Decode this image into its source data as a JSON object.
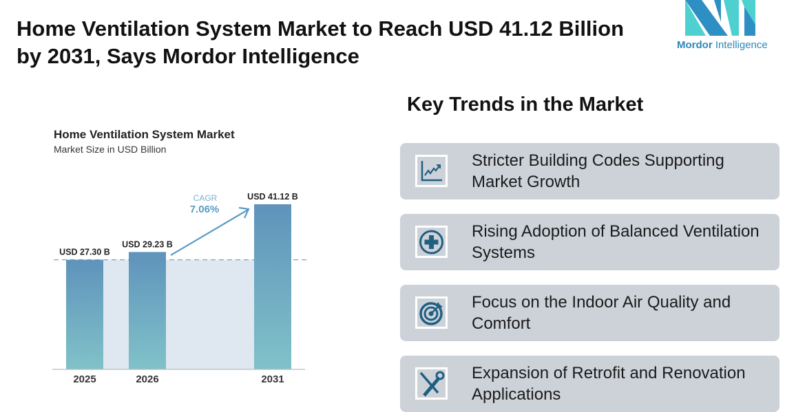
{
  "header": {
    "title": "Home Ventilation System Market to Reach USD 41.12 Billion by 2031, Says Mordor Intelligence"
  },
  "logo": {
    "brand_bold": "Mordor",
    "brand_light": "Intelligence",
    "colors": [
      "#2e8fc4",
      "#4fd0d0"
    ]
  },
  "chart_data": {
    "type": "bar",
    "title": "Home Ventilation System Market",
    "subtitle": "Market Size in USD Billion",
    "categories": [
      "2025",
      "2026",
      "2031"
    ],
    "values": [
      27.3,
      29.23,
      41.12
    ],
    "data_labels": [
      "USD 27.30 B",
      "USD 29.23 B",
      "USD 41.12 B"
    ],
    "annotation": {
      "label": "CAGR",
      "value": "7.06%"
    },
    "ylim": [
      0,
      41.12
    ],
    "grid": false,
    "colors": {
      "bar_top": "#5f93bb",
      "bar_bottom": "#80c2c9",
      "band": "#dfe8f0",
      "accent": "#5a9ac4"
    }
  },
  "trends": {
    "title": "Key Trends in the Market",
    "items": [
      {
        "text": "Stricter Building Codes Supporting Market Growth",
        "icon": "chart-growth-icon"
      },
      {
        "text": "Rising Adoption of Balanced Ventilation Systems",
        "icon": "plus-circle-icon"
      },
      {
        "text": "Focus on the Indoor Air Quality and Comfort",
        "icon": "target-icon"
      },
      {
        "text": "Expansion of Retrofit and Renovation Applications",
        "icon": "tools-icon"
      }
    ],
    "icon_color": "#1f5f82"
  }
}
